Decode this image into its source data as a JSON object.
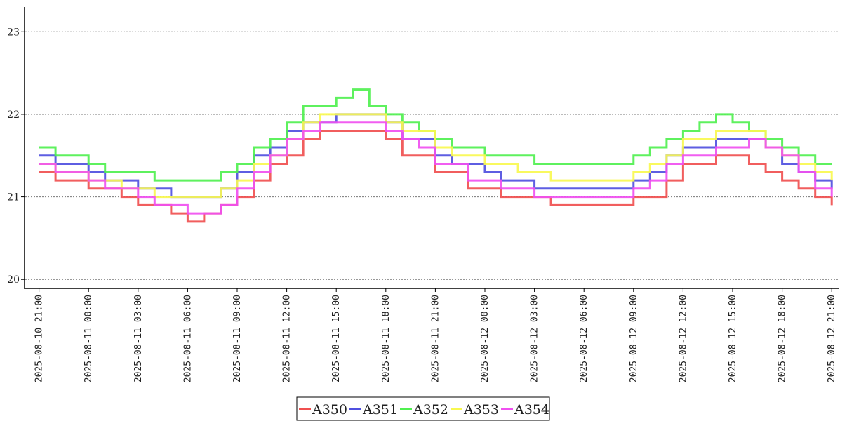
{
  "chart_data": {
    "type": "line",
    "title": "",
    "xlabel": "",
    "ylabel": "",
    "ylim": [
      19.9,
      23.3
    ],
    "xlim": [
      "2025-08-10 20:10",
      "2025-08-12 21:25"
    ],
    "y_ticks": [
      "20",
      "21",
      "22",
      "23"
    ],
    "x_ticks": [
      "2025-08-10 21:00",
      "2025-08-11 00:00",
      "2025-08-11 03:00",
      "2025-08-11 06:00",
      "2025-08-11 09:00",
      "2025-08-11 12:00",
      "2025-08-11 15:00",
      "2025-08-11 18:00",
      "2025-08-11 21:00",
      "2025-08-12 00:00",
      "2025-08-12 03:00",
      "2025-08-12 06:00",
      "2025-08-12 09:00",
      "2025-08-12 12:00",
      "2025-08-12 15:00",
      "2025-08-12 18:00",
      "2025-08-12 21:00"
    ],
    "grid": "horizontal dotted",
    "legend_position": "bottom-center",
    "series": [
      {
        "name": "A350",
        "color": "#f05050",
        "points": [
          [
            "2025-08-10 21:00",
            21.3
          ],
          [
            "2025-08-10 22:00",
            21.2
          ],
          [
            "2025-08-11 00:00",
            21.1
          ],
          [
            "2025-08-11 02:00",
            21.0
          ],
          [
            "2025-08-11 03:00",
            20.9
          ],
          [
            "2025-08-11 04:00",
            20.9
          ],
          [
            "2025-08-11 05:00",
            20.8
          ],
          [
            "2025-08-11 06:00",
            20.7
          ],
          [
            "2025-08-11 07:00",
            20.8
          ],
          [
            "2025-08-11 08:00",
            20.9
          ],
          [
            "2025-08-11 09:00",
            21.0
          ],
          [
            "2025-08-11 10:00",
            21.2
          ],
          [
            "2025-08-11 11:00",
            21.4
          ],
          [
            "2025-08-11 12:00",
            21.5
          ],
          [
            "2025-08-11 13:00",
            21.7
          ],
          [
            "2025-08-11 14:00",
            21.8
          ],
          [
            "2025-08-11 17:00",
            21.8
          ],
          [
            "2025-08-11 18:00",
            21.7
          ],
          [
            "2025-08-11 19:00",
            21.5
          ],
          [
            "2025-08-11 21:00",
            21.3
          ],
          [
            "2025-08-11 23:00",
            21.1
          ],
          [
            "2025-08-12 01:00",
            21.0
          ],
          [
            "2025-08-12 03:00",
            21.0
          ],
          [
            "2025-08-12 04:00",
            20.9
          ],
          [
            "2025-08-12 08:00",
            20.9
          ],
          [
            "2025-08-12 09:00",
            21.0
          ],
          [
            "2025-08-12 10:00",
            21.0
          ],
          [
            "2025-08-12 11:00",
            21.2
          ],
          [
            "2025-08-12 12:00",
            21.4
          ],
          [
            "2025-08-12 13:00",
            21.4
          ],
          [
            "2025-08-12 14:00",
            21.5
          ],
          [
            "2025-08-12 16:00",
            21.4
          ],
          [
            "2025-08-12 17:00",
            21.3
          ],
          [
            "2025-08-12 18:00",
            21.2
          ],
          [
            "2025-08-12 19:00",
            21.1
          ],
          [
            "2025-08-12 20:00",
            21.0
          ],
          [
            "2025-08-12 21:00",
            20.9
          ]
        ]
      },
      {
        "name": "A351",
        "color": "#5050e0",
        "points": [
          [
            "2025-08-10 21:00",
            21.5
          ],
          [
            "2025-08-10 22:00",
            21.4
          ],
          [
            "2025-08-11 00:00",
            21.3
          ],
          [
            "2025-08-11 01:00",
            21.2
          ],
          [
            "2025-08-11 03:00",
            21.1
          ],
          [
            "2025-08-11 05:00",
            21.0
          ],
          [
            "2025-08-11 06:00",
            21.0
          ],
          [
            "2025-08-11 07:00",
            21.0
          ],
          [
            "2025-08-11 08:00",
            21.1
          ],
          [
            "2025-08-11 09:00",
            21.3
          ],
          [
            "2025-08-11 10:00",
            21.5
          ],
          [
            "2025-08-11 11:00",
            21.6
          ],
          [
            "2025-08-11 12:00",
            21.8
          ],
          [
            "2025-08-11 13:00",
            21.9
          ],
          [
            "2025-08-11 15:00",
            22.0
          ],
          [
            "2025-08-11 17:00",
            22.0
          ],
          [
            "2025-08-11 18:00",
            21.9
          ],
          [
            "2025-08-11 19:00",
            21.7
          ],
          [
            "2025-08-11 21:00",
            21.5
          ],
          [
            "2025-08-11 22:00",
            21.4
          ],
          [
            "2025-08-12 00:00",
            21.3
          ],
          [
            "2025-08-12 01:00",
            21.2
          ],
          [
            "2025-08-12 03:00",
            21.1
          ],
          [
            "2025-08-12 06:00",
            21.1
          ],
          [
            "2025-08-12 08:00",
            21.1
          ],
          [
            "2025-08-12 09:00",
            21.2
          ],
          [
            "2025-08-12 10:00",
            21.3
          ],
          [
            "2025-08-12 11:00",
            21.5
          ],
          [
            "2025-08-12 12:00",
            21.6
          ],
          [
            "2025-08-12 14:00",
            21.7
          ],
          [
            "2025-08-12 16:00",
            21.7
          ],
          [
            "2025-08-12 17:00",
            21.6
          ],
          [
            "2025-08-12 18:00",
            21.4
          ],
          [
            "2025-08-12 19:00",
            21.3
          ],
          [
            "2025-08-12 20:00",
            21.2
          ],
          [
            "2025-08-12 21:00",
            21.1
          ]
        ]
      },
      {
        "name": "A352",
        "color": "#50f050",
        "points": [
          [
            "2025-08-10 21:00",
            21.6
          ],
          [
            "2025-08-10 22:00",
            21.5
          ],
          [
            "2025-08-11 00:00",
            21.4
          ],
          [
            "2025-08-11 01:00",
            21.3
          ],
          [
            "2025-08-11 03:00",
            21.3
          ],
          [
            "2025-08-11 04:00",
            21.2
          ],
          [
            "2025-08-11 06:00",
            21.2
          ],
          [
            "2025-08-11 08:00",
            21.3
          ],
          [
            "2025-08-11 09:00",
            21.4
          ],
          [
            "2025-08-11 10:00",
            21.6
          ],
          [
            "2025-08-11 11:00",
            21.7
          ],
          [
            "2025-08-11 12:00",
            21.9
          ],
          [
            "2025-08-11 13:00",
            22.1
          ],
          [
            "2025-08-11 15:00",
            22.2
          ],
          [
            "2025-08-11 16:00",
            22.3
          ],
          [
            "2025-08-11 17:00",
            22.1
          ],
          [
            "2025-08-11 18:00",
            22.0
          ],
          [
            "2025-08-11 19:00",
            21.9
          ],
          [
            "2025-08-11 20:00",
            21.8
          ],
          [
            "2025-08-11 21:00",
            21.7
          ],
          [
            "2025-08-11 22:00",
            21.6
          ],
          [
            "2025-08-12 00:00",
            21.5
          ],
          [
            "2025-08-12 02:00",
            21.5
          ],
          [
            "2025-08-12 03:00",
            21.4
          ],
          [
            "2025-08-12 06:00",
            21.4
          ],
          [
            "2025-08-12 08:00",
            21.4
          ],
          [
            "2025-08-12 09:00",
            21.5
          ],
          [
            "2025-08-12 10:00",
            21.6
          ],
          [
            "2025-08-12 11:00",
            21.7
          ],
          [
            "2025-08-12 12:00",
            21.8
          ],
          [
            "2025-08-12 13:00",
            21.9
          ],
          [
            "2025-08-12 14:00",
            22.0
          ],
          [
            "2025-08-12 15:00",
            21.9
          ],
          [
            "2025-08-12 16:00",
            21.8
          ],
          [
            "2025-08-12 17:00",
            21.7
          ],
          [
            "2025-08-12 18:00",
            21.6
          ],
          [
            "2025-08-12 19:00",
            21.5
          ],
          [
            "2025-08-12 20:00",
            21.4
          ],
          [
            "2025-08-12 21:00",
            21.4
          ]
        ]
      },
      {
        "name": "A353",
        "color": "#f8f850",
        "points": [
          [
            "2025-08-10 21:00",
            21.4
          ],
          [
            "2025-08-10 22:00",
            21.3
          ],
          [
            "2025-08-11 00:00",
            21.2
          ],
          [
            "2025-08-11 02:00",
            21.1
          ],
          [
            "2025-08-11 04:00",
            21.0
          ],
          [
            "2025-08-11 06:00",
            21.0
          ],
          [
            "2025-08-11 07:00",
            21.0
          ],
          [
            "2025-08-11 08:00",
            21.1
          ],
          [
            "2025-08-11 09:00",
            21.2
          ],
          [
            "2025-08-11 10:00",
            21.4
          ],
          [
            "2025-08-11 11:00",
            21.5
          ],
          [
            "2025-08-11 12:00",
            21.7
          ],
          [
            "2025-08-11 13:00",
            21.9
          ],
          [
            "2025-08-11 14:00",
            22.0
          ],
          [
            "2025-08-11 16:00",
            22.0
          ],
          [
            "2025-08-11 17:00",
            22.0
          ],
          [
            "2025-08-11 18:00",
            21.9
          ],
          [
            "2025-08-11 19:00",
            21.8
          ],
          [
            "2025-08-11 21:00",
            21.6
          ],
          [
            "2025-08-11 22:00",
            21.5
          ],
          [
            "2025-08-12 00:00",
            21.4
          ],
          [
            "2025-08-12 02:00",
            21.3
          ],
          [
            "2025-08-12 04:00",
            21.2
          ],
          [
            "2025-08-12 08:00",
            21.2
          ],
          [
            "2025-08-12 09:00",
            21.3
          ],
          [
            "2025-08-12 10:00",
            21.4
          ],
          [
            "2025-08-12 11:00",
            21.5
          ],
          [
            "2025-08-12 12:00",
            21.7
          ],
          [
            "2025-08-12 14:00",
            21.8
          ],
          [
            "2025-08-12 16:00",
            21.8
          ],
          [
            "2025-08-12 17:00",
            21.6
          ],
          [
            "2025-08-12 18:00",
            21.5
          ],
          [
            "2025-08-12 19:00",
            21.4
          ],
          [
            "2025-08-12 20:00",
            21.3
          ],
          [
            "2025-08-12 21:00",
            21.2
          ]
        ]
      },
      {
        "name": "A354",
        "color": "#f050f0",
        "points": [
          [
            "2025-08-10 21:00",
            21.4
          ],
          [
            "2025-08-10 22:00",
            21.3
          ],
          [
            "2025-08-11 00:00",
            21.2
          ],
          [
            "2025-08-11 01:00",
            21.1
          ],
          [
            "2025-08-11 03:00",
            21.0
          ],
          [
            "2025-08-11 04:00",
            20.9
          ],
          [
            "2025-08-11 06:00",
            20.8
          ],
          [
            "2025-08-11 07:00",
            20.8
          ],
          [
            "2025-08-11 08:00",
            20.9
          ],
          [
            "2025-08-11 09:00",
            21.1
          ],
          [
            "2025-08-11 10:00",
            21.3
          ],
          [
            "2025-08-11 11:00",
            21.5
          ],
          [
            "2025-08-11 12:00",
            21.7
          ],
          [
            "2025-08-11 13:00",
            21.8
          ],
          [
            "2025-08-11 14:00",
            21.9
          ],
          [
            "2025-08-11 16:00",
            21.9
          ],
          [
            "2025-08-11 17:00",
            21.9
          ],
          [
            "2025-08-11 18:00",
            21.8
          ],
          [
            "2025-08-11 19:00",
            21.7
          ],
          [
            "2025-08-11 20:00",
            21.6
          ],
          [
            "2025-08-11 21:00",
            21.4
          ],
          [
            "2025-08-11 23:00",
            21.2
          ],
          [
            "2025-08-12 01:00",
            21.1
          ],
          [
            "2025-08-12 03:00",
            21.0
          ],
          [
            "2025-08-12 08:00",
            21.0
          ],
          [
            "2025-08-12 09:00",
            21.1
          ],
          [
            "2025-08-12 10:00",
            21.2
          ],
          [
            "2025-08-12 11:00",
            21.4
          ],
          [
            "2025-08-12 12:00",
            21.5
          ],
          [
            "2025-08-12 14:00",
            21.6
          ],
          [
            "2025-08-12 16:00",
            21.7
          ],
          [
            "2025-08-12 17:00",
            21.6
          ],
          [
            "2025-08-12 18:00",
            21.5
          ],
          [
            "2025-08-12 19:00",
            21.3
          ],
          [
            "2025-08-12 20:00",
            21.1
          ],
          [
            "2025-08-12 21:00",
            21.0
          ]
        ]
      }
    ]
  }
}
